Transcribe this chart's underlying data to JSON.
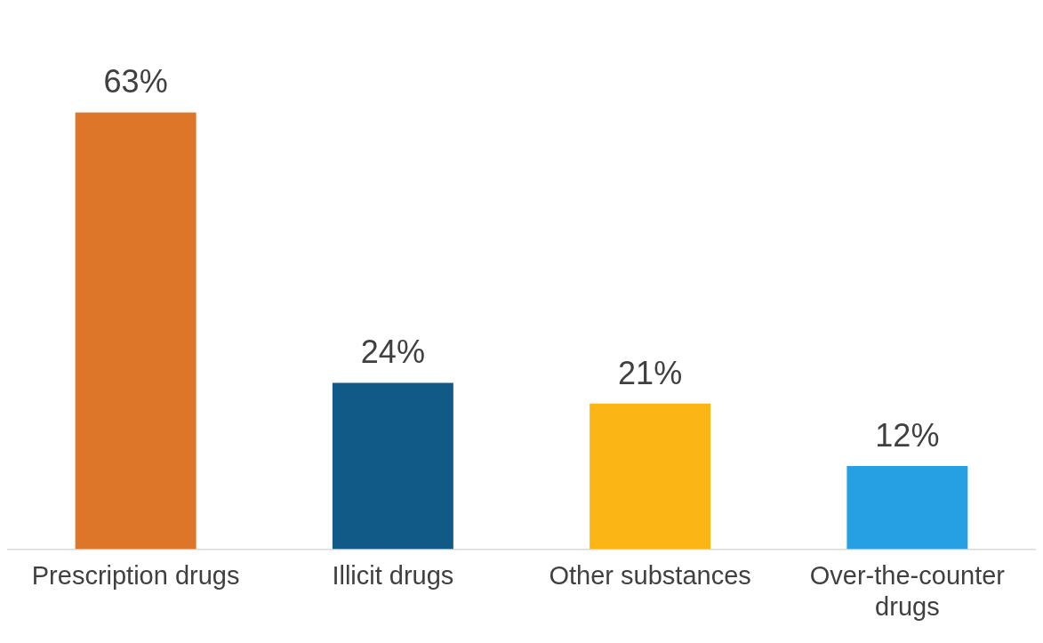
{
  "chart_data": {
    "type": "bar",
    "categories": [
      "Prescription drugs",
      "Illicit drugs",
      "Other substances",
      "Over-the-counter drugs"
    ],
    "values": [
      63,
      24,
      21,
      12
    ],
    "colors": [
      "#dd7629",
      "#115a88",
      "#fbb615",
      "#279fe3"
    ],
    "value_labels": [
      "63%",
      "24%",
      "21%",
      "12%"
    ],
    "grid": false,
    "legend": false
  }
}
